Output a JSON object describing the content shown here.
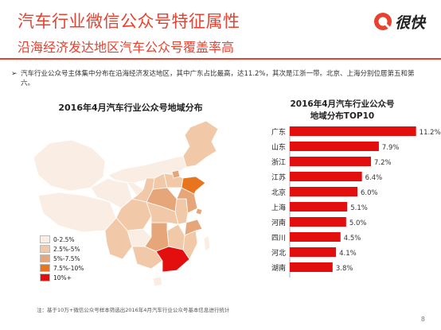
{
  "header": {
    "title": "汽车行业微信公众号特征属性",
    "subtitle": "沿海经济发达地区汽车公众号覆盖率高",
    "logo_text": "很快"
  },
  "bullet": "汽车行业公众号主体集中分布在沿海经济发达地区，其中广东占比最高，达11.2%，其次是江浙一带。北京、上海分别位居第五和第六。",
  "map": {
    "title": "2016年4月汽车行业公众号地域分布",
    "legend": [
      {
        "label": "0-2.5%",
        "color": "#faeee4"
      },
      {
        "label": "2.5%-5%",
        "color": "#f2c9a8"
      },
      {
        "label": "5%-7.5%",
        "color": "#e7a57a"
      },
      {
        "label": "7.5%-10%",
        "color": "#e8751e"
      },
      {
        "label": "10%+",
        "color": "#e30e0e"
      }
    ]
  },
  "chart_title_line1": "2016年4月汽车行业公众号",
  "chart_title_line2": "地域分布TOP10",
  "chart_data": {
    "type": "bar",
    "title": "2016年4月汽车行业公众号地域分布TOP10",
    "orientation": "horizontal",
    "categories": [
      "广东",
      "山东",
      "浙江",
      "江苏",
      "北京",
      "上海",
      "河南",
      "四川",
      "河北",
      "湖南"
    ],
    "values": [
      11.2,
      7.9,
      7.2,
      6.4,
      6.0,
      5.1,
      5.0,
      4.5,
      4.1,
      3.8
    ],
    "value_labels": [
      "11.2%",
      "7.9%",
      "7.2%",
      "6.4%",
      "6.0%",
      "5.1%",
      "5.0%",
      "4.5%",
      "4.1%",
      "3.8%"
    ],
    "xlim": [
      0,
      12
    ],
    "bar_color": "#e30e0e",
    "grid": false
  },
  "footnote": "注：基于10万+微信公众号样本筛选出2016年4月汽车行业公众号基本信息进行统计",
  "page_number": "8",
  "colors": {
    "accent": "#e8412f",
    "bar": "#e30e0e"
  }
}
